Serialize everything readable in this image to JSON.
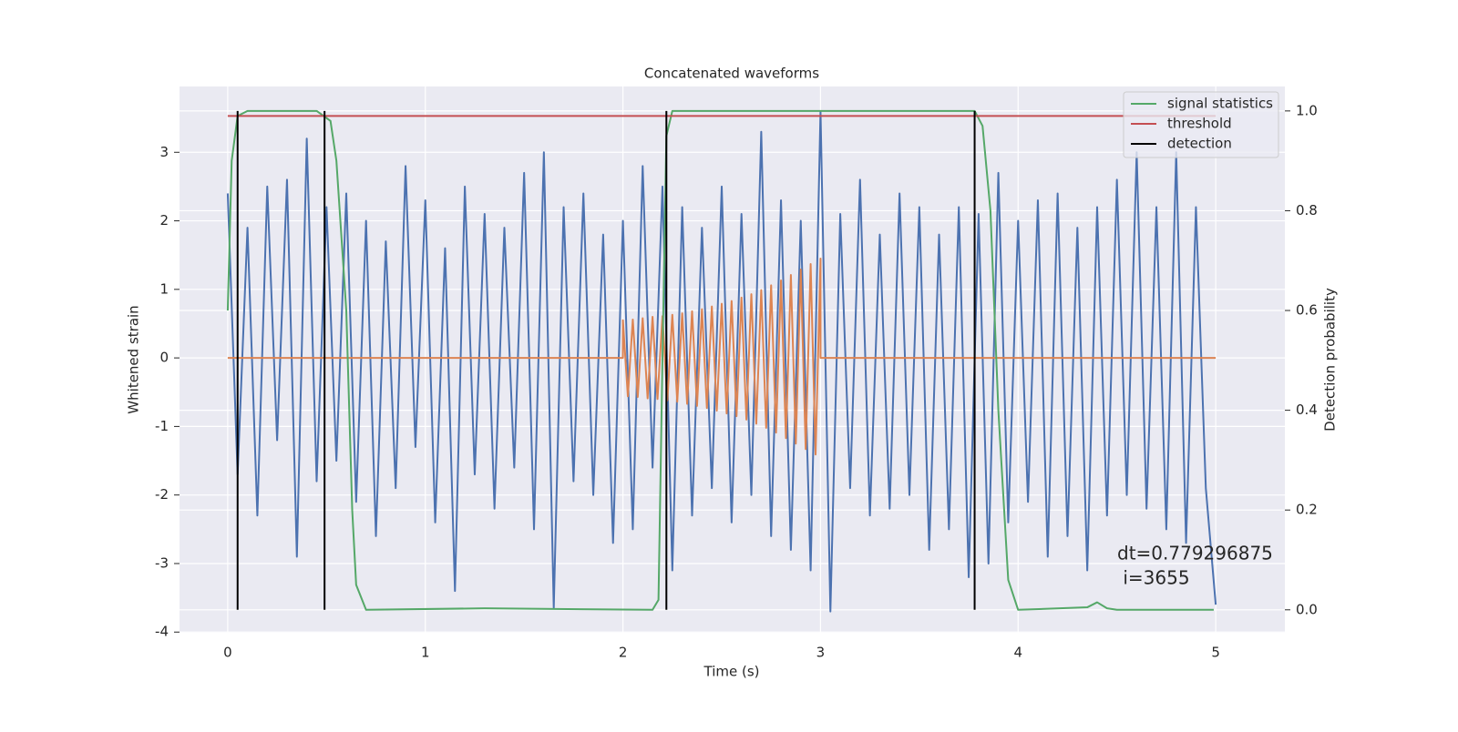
{
  "chart_data": {
    "type": "line",
    "title": "Concatenated waveforms",
    "xlabel": "Time (s)",
    "ylabel": "Whitened strain",
    "y2label": "Detection probability",
    "xlim": [
      -0.244,
      5.35
    ],
    "xticks": [
      0,
      1,
      2,
      3,
      4,
      5
    ],
    "ylim": [
      -4.01,
      3.96
    ],
    "yticks": [
      -4,
      -3,
      -2,
      -1,
      0,
      1,
      2,
      3
    ],
    "y2lim": [
      -0.046,
      1.049
    ],
    "y2ticks": [
      {
        "value": 0,
        "label": "0.0"
      },
      0.2,
      0.4,
      0.6,
      0.8,
      {
        "value": 1,
        "label": "1.0"
      }
    ],
    "grid": true,
    "legend": "upper right",
    "annotation_lines": [
      "dt=0.779296875",
      " i=3655"
    ],
    "series": [
      {
        "color": "#4c72b0",
        "x": [
          0,
          0.05,
          0.1,
          0.15,
          0.2,
          0.25,
          0.3,
          0.35,
          0.4,
          0.45,
          0.5,
          0.55,
          0.6,
          0.65,
          0.7,
          0.75,
          0.8,
          0.85,
          0.9,
          0.95,
          1,
          1.05,
          1.1,
          1.15,
          1.2,
          1.25,
          1.3,
          1.35,
          1.4,
          1.45,
          1.5,
          1.55,
          1.6,
          1.65,
          1.7,
          1.75,
          1.8,
          1.85,
          1.9,
          1.95,
          2,
          2.05,
          2.1,
          2.15,
          2.2,
          2.25,
          2.3,
          2.35,
          2.4,
          2.45,
          2.5,
          2.55,
          2.6,
          2.65,
          2.7,
          2.75,
          2.8,
          2.85,
          2.9,
          2.95,
          3,
          3.05,
          3.1,
          3.15,
          3.2,
          3.25,
          3.3,
          3.35,
          3.4,
          3.45,
          3.5,
          3.55,
          3.6,
          3.65,
          3.7,
          3.75,
          3.8,
          3.85,
          3.9,
          3.95,
          4,
          4.05,
          4.1,
          4.15,
          4.2,
          4.25,
          4.3,
          4.35,
          4.4,
          4.45,
          4.5,
          4.55,
          4.6,
          4.65,
          4.7,
          4.75,
          4.8,
          4.85,
          4.9,
          4.95,
          5
        ],
        "values": [
          2.4,
          -1.7,
          1.9,
          -2.3,
          2.5,
          -1.2,
          2.6,
          -2.9,
          3.2,
          -1.8,
          2.2,
          -1.5,
          2.4,
          -2.1,
          2.0,
          -2.6,
          1.7,
          -1.9,
          2.8,
          -1.3,
          2.3,
          -2.4,
          1.6,
          -3.4,
          2.5,
          -1.7,
          2.1,
          -2.2,
          1.9,
          -1.6,
          2.7,
          -2.5,
          3.0,
          -3.65,
          2.2,
          -1.8,
          2.4,
          -2.0,
          1.8,
          -2.7,
          2.0,
          -2.5,
          2.8,
          -1.6,
          2.5,
          -3.1,
          2.2,
          -2.3,
          1.9,
          -1.9,
          2.5,
          -2.4,
          2.1,
          -2.0,
          3.3,
          -2.6,
          2.3,
          -2.8,
          2.0,
          -3.1,
          3.6,
          -3.7,
          2.1,
          -1.9,
          2.6,
          -2.3,
          1.8,
          -2.2,
          2.4,
          -2.0,
          2.2,
          -2.8,
          1.8,
          -2.5,
          2.2,
          -3.2,
          2.1,
          -3.0,
          2.7,
          -2.4,
          2.0,
          -2.1,
          2.3,
          -2.9,
          2.4,
          -2.6,
          1.9,
          -3.1,
          2.2,
          -2.3,
          2.6,
          -2.0,
          3.0,
          -2.2,
          2.2,
          -2.5,
          3.0,
          -2.7,
          2.2,
          -1.9,
          -3.6
        ]
      },
      {
        "color": "#dd8452",
        "x": [
          0,
          2,
          2,
          2.025,
          2.05,
          2.075,
          2.1,
          2.125,
          2.15,
          2.175,
          2.2,
          2.225,
          2.25,
          2.275,
          2.3,
          2.325,
          2.35,
          2.375,
          2.4,
          2.425,
          2.45,
          2.475,
          2.5,
          2.525,
          2.55,
          2.575,
          2.6,
          2.625,
          2.65,
          2.675,
          2.7,
          2.725,
          2.75,
          2.775,
          2.8,
          2.825,
          2.85,
          2.875,
          2.9,
          2.925,
          2.95,
          2.975,
          3,
          3,
          5
        ],
        "values": [
          0,
          0,
          0.55,
          -0.56,
          0.56,
          -0.57,
          0.58,
          -0.59,
          0.6,
          -0.6,
          0.61,
          -0.62,
          0.63,
          -0.64,
          0.65,
          -0.67,
          0.68,
          -0.7,
          0.71,
          -0.73,
          0.75,
          -0.77,
          0.79,
          -0.81,
          0.83,
          -0.85,
          0.88,
          -0.9,
          0.93,
          -0.96,
          0.99,
          -1.02,
          1.06,
          -1.09,
          1.13,
          -1.17,
          1.21,
          -1.25,
          1.29,
          -1.33,
          1.37,
          -1.41,
          1.45,
          0,
          0
        ]
      },
      {
        "name": "signal statistics",
        "color": "#55a868",
        "axis": "y2",
        "x": [
          0,
          0.02,
          0.05,
          0.1,
          0.45,
          0.52,
          0.55,
          0.6,
          0.63,
          0.65,
          0.7,
          1.3,
          2.15,
          2.18,
          2.2,
          2.22,
          2.25,
          3.78,
          3.82,
          3.86,
          3.9,
          3.95,
          4.0,
          4.35,
          4.4,
          4.45,
          4.5,
          4.99
        ],
        "values": [
          0.6,
          0.9,
          0.99,
          1.0,
          1.0,
          0.98,
          0.9,
          0.6,
          0.2,
          0.05,
          0.0,
          0.003,
          0.0,
          0.02,
          0.5,
          0.95,
          1.0,
          1.0,
          0.97,
          0.8,
          0.4,
          0.06,
          0.0,
          0.005,
          0.015,
          0.003,
          0.0,
          0.0
        ]
      },
      {
        "name": "threshold",
        "color": "#c44e52",
        "axis": "y2",
        "x": [
          0,
          5
        ],
        "values": [
          0.99,
          0.99
        ]
      },
      {
        "name": "detection",
        "color": "#000000",
        "axis": "y2",
        "x": [
          0.05,
          0.05,
          0.05,
          0.49,
          0.49,
          0.49,
          2.22,
          2.22,
          2.22,
          3.78,
          3.78
        ],
        "values": [
          0,
          1,
          null,
          0,
          1,
          null,
          0,
          1,
          null,
          0,
          1
        ]
      }
    ]
  }
}
